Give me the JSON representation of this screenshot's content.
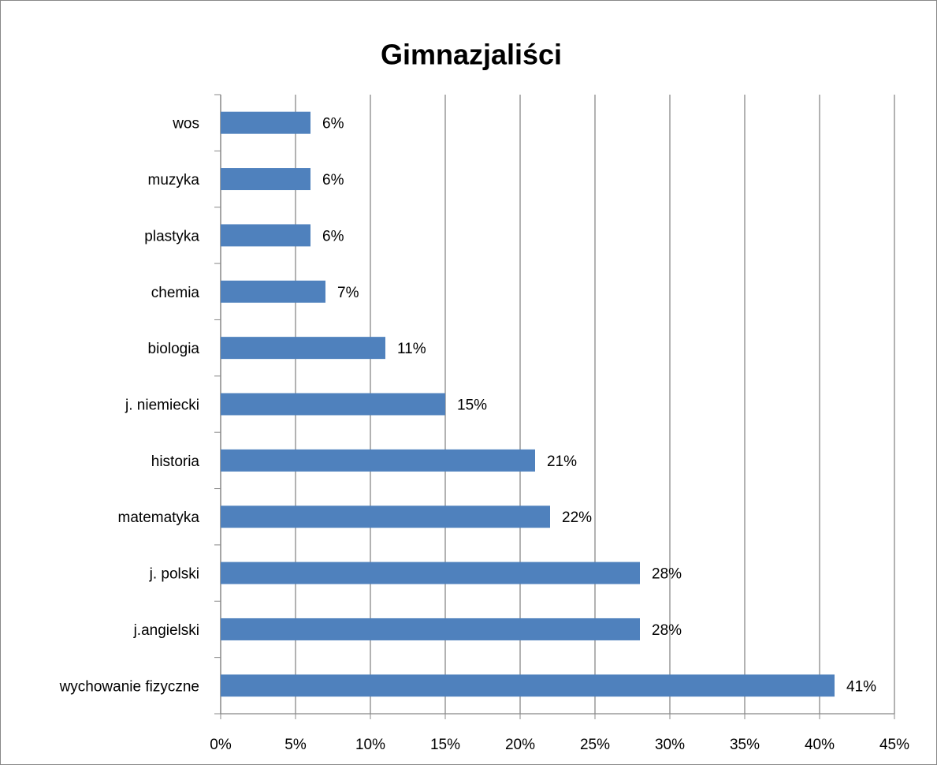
{
  "chart_data": {
    "type": "bar",
    "orientation": "horizontal",
    "title": "Gimnazjaliści",
    "categories": [
      "wos",
      "muzyka",
      "plastyka",
      "chemia",
      "biologia",
      "j. niemiecki",
      "historia",
      "matematyka",
      "j. polski",
      "j.angielski",
      "wychowanie fizyczne"
    ],
    "values": [
      6,
      6,
      6,
      7,
      11,
      15,
      21,
      22,
      28,
      28,
      41
    ],
    "value_labels": [
      "6%",
      "6%",
      "6%",
      "7%",
      "11%",
      "15%",
      "21%",
      "22%",
      "28%",
      "28%",
      "41%"
    ],
    "color": "#4f81bd",
    "xlim": [
      0,
      45
    ],
    "xticks": [
      {
        "value": 0,
        "label": "0%"
      },
      {
        "value": 5,
        "label": "5%"
      },
      {
        "value": 10,
        "label": "10%"
      },
      {
        "value": 15,
        "label": "15%"
      },
      {
        "value": 20,
        "label": "20%"
      },
      {
        "value": 25,
        "label": "25%"
      },
      {
        "value": 30,
        "label": "30%"
      },
      {
        "value": 35,
        "label": "35%"
      },
      {
        "value": 40,
        "label": "40%"
      },
      {
        "value": 45,
        "label": "45%"
      }
    ],
    "grid": true
  }
}
